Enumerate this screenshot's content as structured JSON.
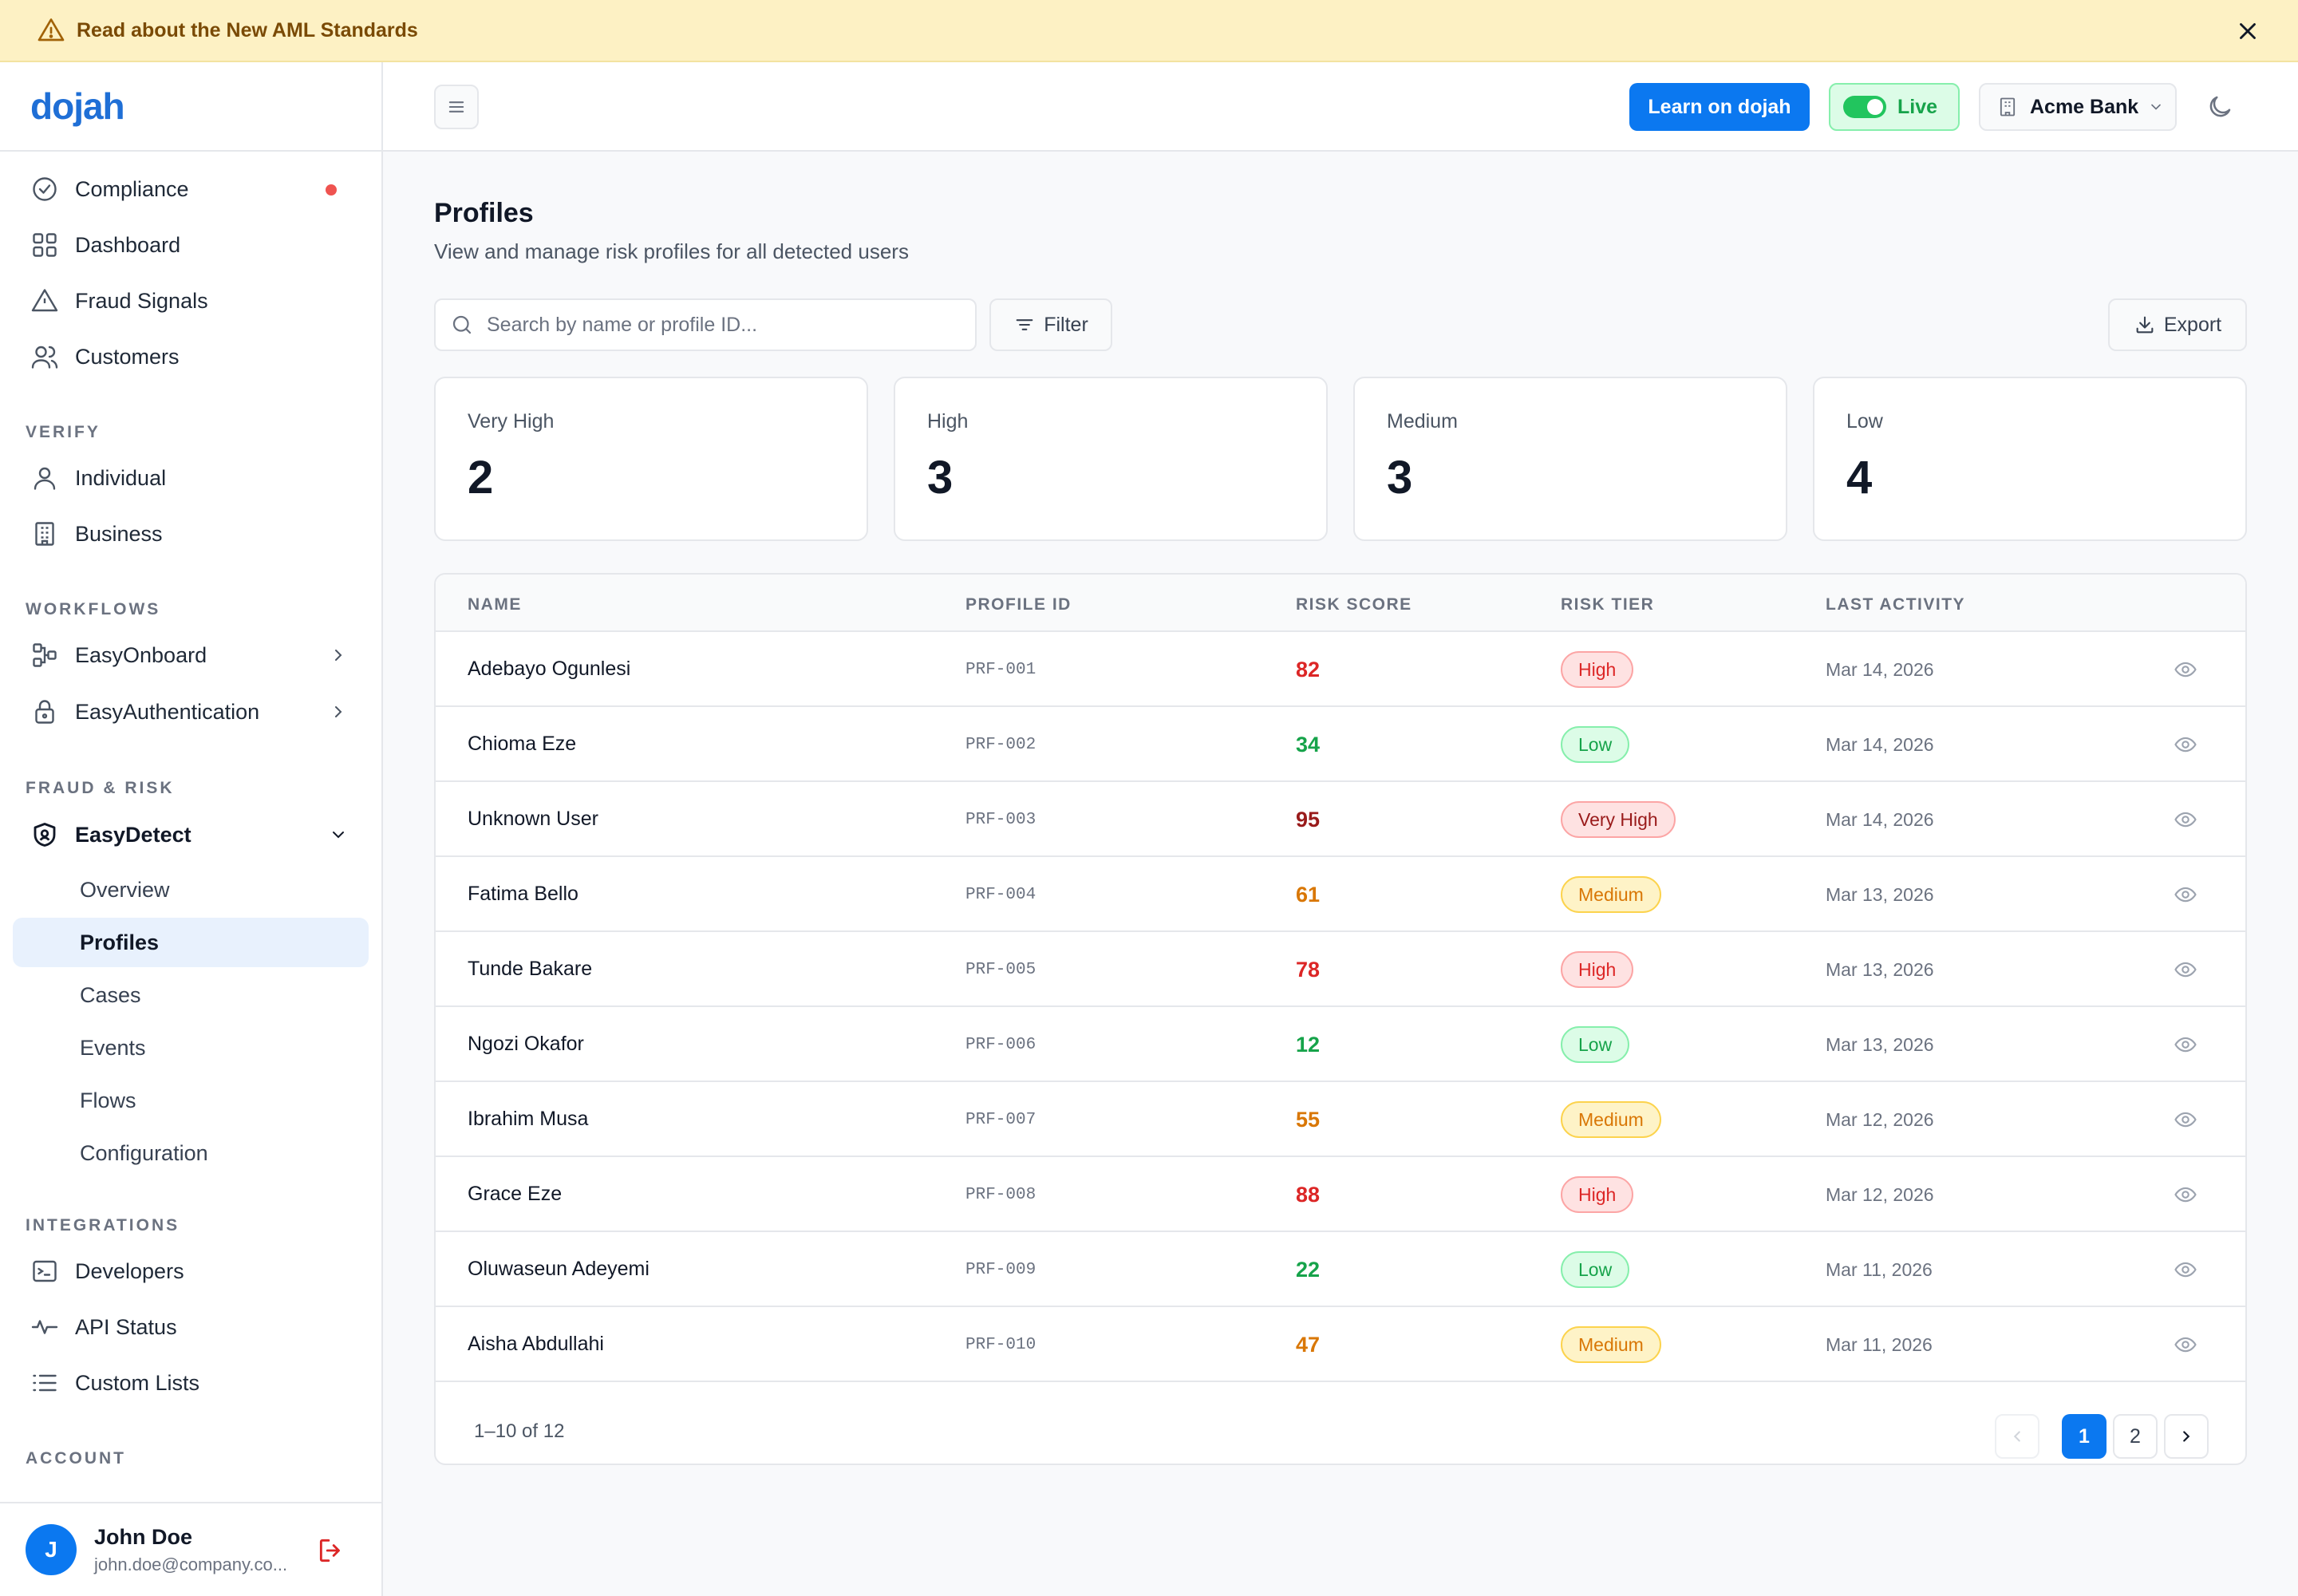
{
  "banner": {
    "text": "Read about the New AML Standards"
  },
  "logo": {
    "text": "dojah"
  },
  "sidebar": {
    "top_items": [
      {
        "label": "Compliance",
        "icon": "check-circle-icon"
      },
      {
        "label": "Dashboard",
        "icon": "grid-icon"
      },
      {
        "label": "Fraud Signals",
        "icon": "warning-icon"
      },
      {
        "label": "Customers",
        "icon": "users-icon"
      }
    ],
    "sections": {
      "verify": "VERIFY",
      "workflows": "WORKFLOWS",
      "fraud_risk": "FRAUD & RISK",
      "integrations": "INTEGRATIONS",
      "account": "ACCOUNT"
    },
    "verify_items": [
      {
        "label": "Individual",
        "icon": "user-icon"
      },
      {
        "label": "Business",
        "icon": "building-icon"
      }
    ],
    "workflow_items": [
      {
        "label": "EasyOnboard",
        "icon": "workflow-icon"
      },
      {
        "label": "EasyAuthentication",
        "icon": "lock-icon"
      }
    ],
    "easydetect": {
      "label": "EasyDetect",
      "subitems": [
        "Overview",
        "Profiles",
        "Cases",
        "Events",
        "Flows",
        "Configuration"
      ],
      "active": "Profiles"
    },
    "integration_items": [
      {
        "label": "Developers",
        "icon": "terminal-icon"
      },
      {
        "label": "API Status",
        "icon": "activity-icon"
      },
      {
        "label": "Custom Lists",
        "icon": "list-icon"
      }
    ],
    "user": {
      "initial": "J",
      "name": "John Doe",
      "email": "john.doe@company.co..."
    }
  },
  "header": {
    "learn_label": "Learn on dojah",
    "live_label": "Live",
    "bank_label": "Acme Bank"
  },
  "page": {
    "title": "Profiles",
    "subtitle": "View and manage risk profiles for all detected users",
    "search_placeholder": "Search by name or profile ID...",
    "filter_label": "Filter",
    "export_label": "Export"
  },
  "stats": [
    {
      "label": "Very High",
      "value": "2"
    },
    {
      "label": "High",
      "value": "3"
    },
    {
      "label": "Medium",
      "value": "3"
    },
    {
      "label": "Low",
      "value": "4"
    }
  ],
  "table": {
    "columns": [
      "NAME",
      "PROFILE ID",
      "RISK SCORE",
      "RISK TIER",
      "LAST ACTIVITY"
    ],
    "rows": [
      {
        "name": "Adebayo Ogunlesi",
        "id": "PRF-001",
        "score": "82",
        "tier": "High",
        "date": "Mar 14, 2026"
      },
      {
        "name": "Chioma Eze",
        "id": "PRF-002",
        "score": "34",
        "tier": "Low",
        "date": "Mar 14, 2026"
      },
      {
        "name": "Unknown User",
        "id": "PRF-003",
        "score": "95",
        "tier": "Very High",
        "date": "Mar 14, 2026"
      },
      {
        "name": "Fatima Bello",
        "id": "PRF-004",
        "score": "61",
        "tier": "Medium",
        "date": "Mar 13, 2026"
      },
      {
        "name": "Tunde Bakare",
        "id": "PRF-005",
        "score": "78",
        "tier": "High",
        "date": "Mar 13, 2026"
      },
      {
        "name": "Ngozi Okafor",
        "id": "PRF-006",
        "score": "12",
        "tier": "Low",
        "date": "Mar 13, 2026"
      },
      {
        "name": "Ibrahim Musa",
        "id": "PRF-007",
        "score": "55",
        "tier": "Medium",
        "date": "Mar 12, 2026"
      },
      {
        "name": "Grace Eze",
        "id": "PRF-008",
        "score": "88",
        "tier": "High",
        "date": "Mar 12, 2026"
      },
      {
        "name": "Oluwaseun Adeyemi",
        "id": "PRF-009",
        "score": "22",
        "tier": "Low",
        "date": "Mar 11, 2026"
      },
      {
        "name": "Aisha Abdullahi",
        "id": "PRF-010",
        "score": "47",
        "tier": "Medium",
        "date": "Mar 11, 2026"
      }
    ],
    "footer": {
      "count": "1–10 of 12",
      "pages": [
        "1",
        "2"
      ],
      "current_page": "1"
    }
  },
  "colors": {
    "accent": "#0b78f0",
    "tiers": {
      "High": {
        "text": "#dc2626",
        "bg": "#fee2e2",
        "border": "#fca5a5",
        "score": "#dc2626"
      },
      "Low": {
        "text": "#16a34a",
        "bg": "#dcfce7",
        "border": "#86efac",
        "score": "#16a34a"
      },
      "Very High": {
        "text": "#991b1b",
        "bg": "#fee2e2",
        "border": "#fca5a5",
        "score": "#991b1b"
      },
      "Medium": {
        "text": "#d97706",
        "bg": "#fef3c7",
        "border": "#fcd34d",
        "score": "#d97706"
      }
    }
  }
}
